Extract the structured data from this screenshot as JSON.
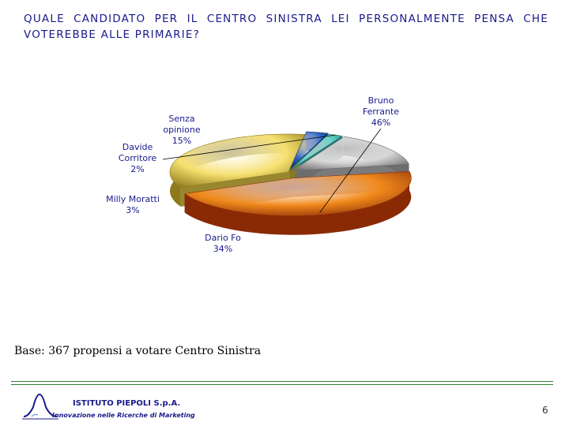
{
  "title": "QUALE CANDIDATO PER IL CENTRO SINISTRA LEI PERSONALMENTE PENSA CHE VOTEREBBE ALLE PRIMARIE?",
  "chart_data": {
    "type": "pie",
    "title": "QUALE CANDIDATO PER IL CENTRO SINISTRA LEI PERSONALMENTE PENSA CHE VOTEREBBE ALLE PRIMARIE?",
    "style": "3d-exploded",
    "slices": [
      {
        "label_lines": [
          "Bruno",
          "Ferrante",
          "46%"
        ],
        "name": "Bruno Ferrante",
        "value": 46,
        "color": "#f08a1c",
        "dark": "#8a2a05"
      },
      {
        "label_lines": [
          "Dario Fo",
          "34%"
        ],
        "name": "Dario Fo",
        "value": 34,
        "color": "#f6e070",
        "dark": "#8e7a1a"
      },
      {
        "label_lines": [
          "Milly Moratti",
          "3%"
        ],
        "name": "Milly Moratti",
        "value": 3,
        "color": "#2f66c8",
        "dark": "#0f2e6e"
      },
      {
        "label_lines": [
          "Davide",
          "Corritore",
          "2%"
        ],
        "name": "Davide Corritore",
        "value": 2,
        "color": "#5fd0c8",
        "dark": "#1e7a74"
      },
      {
        "label_lines": [
          "Senza",
          "opinione",
          "15%"
        ],
        "name": "Senza opinione",
        "value": 15,
        "color": "#d7d7d7",
        "dark": "#6d6d6d"
      }
    ]
  },
  "footer": {
    "base_note": "Base: 367 propensi a votare Centro Sinistra",
    "company": "ISTITUTO PIEPOLI S.p.A.",
    "tagline": "Innovazione nelle Ricerche di Marketing",
    "page_number": "6"
  }
}
